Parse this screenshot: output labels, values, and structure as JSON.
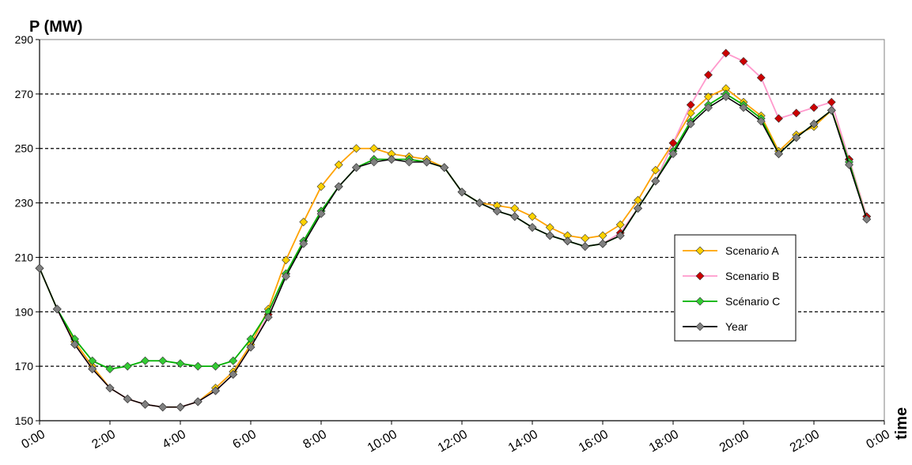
{
  "chart_data": {
    "type": "line",
    "title": "",
    "ylabel": "P (MW)",
    "xlabel": "time",
    "ylim": [
      150,
      290
    ],
    "yticks": [
      150,
      170,
      190,
      210,
      230,
      250,
      270,
      290
    ],
    "grid": "horizontal dashed",
    "legend_position": "right-center",
    "x_tick_labels": [
      "0:00",
      "2:00",
      "4:00",
      "6:00",
      "8:00",
      "10:00",
      "12:00",
      "14:00",
      "16:00",
      "18:00",
      "20:00",
      "22:00",
      "0:00"
    ],
    "x_hours": [
      0,
      0.5,
      1,
      1.5,
      2,
      2.5,
      3,
      3.5,
      4,
      4.5,
      5,
      5.5,
      6,
      6.5,
      7,
      7.5,
      8,
      8.5,
      9,
      9.5,
      10,
      10.5,
      11,
      11.5,
      12,
      12.5,
      13,
      13.5,
      14,
      14.5,
      15,
      15.5,
      16,
      16.5,
      17,
      17.5,
      18,
      18.5,
      19,
      19.5,
      20,
      20.5,
      21,
      21.5,
      22,
      22.5,
      23,
      23.5
    ],
    "series": [
      {
        "name": "Scenario A",
        "color": "#FFA200",
        "marker_color": "#FFD200",
        "values": [
          206,
          191,
          179,
          170,
          162,
          158,
          156,
          155,
          155,
          157,
          162,
          168,
          178,
          191,
          209,
          223,
          236,
          244,
          250,
          250,
          248,
          247,
          246,
          243,
          234,
          230,
          229,
          228,
          225,
          221,
          218,
          217,
          218,
          222,
          231,
          242,
          252,
          263,
          269,
          272,
          267,
          262,
          249,
          255,
          258,
          264,
          246,
          225
        ]
      },
      {
        "name": "Scenario B",
        "color": "#FF99CC",
        "marker_color": "#CC0000",
        "values": [
          206,
          191,
          178,
          169,
          162,
          158,
          156,
          155,
          155,
          157,
          161,
          167,
          177,
          189,
          204,
          216,
          227,
          236,
          243,
          246,
          246,
          246,
          245,
          243,
          234,
          230,
          227,
          225,
          221,
          218,
          216,
          214,
          215,
          219,
          228,
          238,
          252,
          266,
          277,
          285,
          282,
          276,
          261,
          263,
          265,
          267,
          246,
          225
        ]
      },
      {
        "name": "Scénario C",
        "color": "#00B000",
        "marker_color": "#33CC33",
        "values": [
          206,
          191,
          180,
          172,
          169,
          170,
          172,
          172,
          171,
          170,
          170,
          172,
          180,
          190,
          204,
          216,
          227,
          236,
          243,
          246,
          246,
          246,
          245,
          243,
          234,
          230,
          227,
          225,
          221,
          218,
          216,
          214,
          215,
          218,
          228,
          238,
          249,
          260,
          266,
          270,
          266,
          261,
          248,
          254,
          259,
          264,
          245,
          224
        ]
      },
      {
        "name": "Year",
        "color": "#000000",
        "marker_color": "#808080",
        "values": [
          206,
          191,
          178,
          169,
          162,
          158,
          156,
          155,
          155,
          157,
          161,
          167,
          177,
          188,
          203,
          215,
          226,
          236,
          243,
          245,
          246,
          245,
          245,
          243,
          234,
          230,
          227,
          225,
          221,
          218,
          216,
          214,
          215,
          218,
          228,
          238,
          248,
          259,
          265,
          269,
          265,
          260,
          248,
          254,
          259,
          264,
          244,
          224
        ]
      }
    ]
  }
}
